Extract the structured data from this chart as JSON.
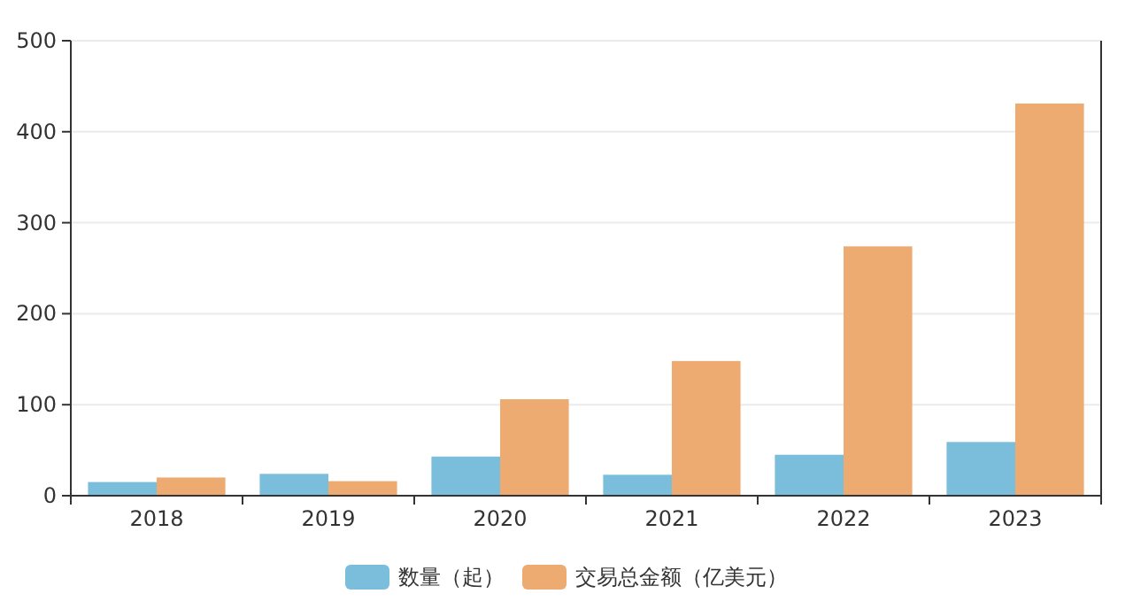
{
  "chart_data": {
    "type": "bar",
    "categories": [
      "2018",
      "2019",
      "2020",
      "2021",
      "2022",
      "2023"
    ],
    "series": [
      {
        "name": "数量（起）",
        "color": "#7bbedc",
        "values": [
          15,
          24,
          43,
          23,
          45,
          59
        ]
      },
      {
        "name": "交易总金额（亿美元）",
        "color": "#edab72",
        "values": [
          20,
          16,
          106,
          148,
          274,
          431
        ]
      }
    ],
    "ylim": [
      0,
      500
    ],
    "yticks": [
      0,
      100,
      200,
      300,
      400,
      500
    ],
    "grid": "y",
    "legend": "bottom"
  }
}
